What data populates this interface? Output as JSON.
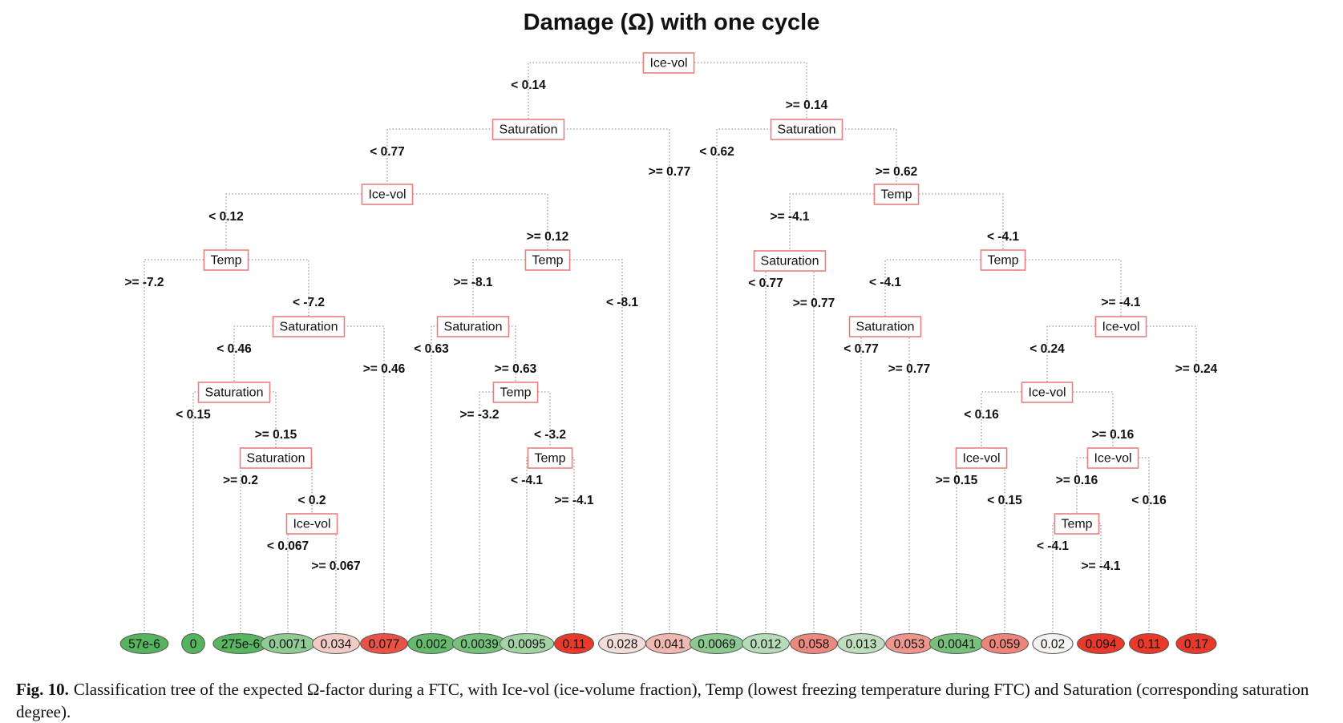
{
  "title": "Damage (Ω) with one cycle",
  "caption": {
    "label": "Fig. 10.",
    "text": "Classification tree of the expected Ω-factor during a FTC, with Ice-vol (ice-volume fraction), Temp (lowest freezing temperature during FTC) and Saturation (corresponding saturation degree)."
  },
  "colors": {
    "node_border": "#e88080",
    "low_green": "#56b45f",
    "mid_white": "#f4f4f0",
    "high_red": "#e8392b"
  },
  "nodes": [
    {
      "id": "n1",
      "label": "Ice-vol"
    },
    {
      "id": "n2",
      "label": "Saturation"
    },
    {
      "id": "n3",
      "label": "Saturation"
    },
    {
      "id": "n4",
      "label": "Ice-vol"
    },
    {
      "id": "n5",
      "label": "Temp"
    },
    {
      "id": "n6",
      "label": "Temp"
    },
    {
      "id": "n7",
      "label": "Saturation"
    },
    {
      "id": "n8",
      "label": "Saturation"
    },
    {
      "id": "n9",
      "label": "Saturation"
    },
    {
      "id": "n10",
      "label": "Ice-vol"
    },
    {
      "id": "n11",
      "label": "Temp"
    },
    {
      "id": "n12",
      "label": "Saturation"
    },
    {
      "id": "n13",
      "label": "Temp"
    },
    {
      "id": "n14",
      "label": "Temp"
    },
    {
      "id": "n15",
      "label": "Saturation"
    },
    {
      "id": "n16",
      "label": "Temp"
    },
    {
      "id": "n17",
      "label": "Saturation"
    },
    {
      "id": "n18",
      "label": "Ice-vol"
    },
    {
      "id": "n19",
      "label": "Ice-vol"
    },
    {
      "id": "n20",
      "label": "Ice-vol"
    },
    {
      "id": "n21",
      "label": "Ice-vol"
    },
    {
      "id": "n22",
      "label": "Temp"
    }
  ],
  "leaves": [
    {
      "label": "57e-6",
      "value": 5.7e-05
    },
    {
      "label": "0",
      "value": 0
    },
    {
      "label": "275e-6",
      "value": 0.000275
    },
    {
      "label": "0.0071",
      "value": 0.0071
    },
    {
      "label": "0.034",
      "value": 0.034
    },
    {
      "label": "0.077",
      "value": 0.077
    },
    {
      "label": "0.002",
      "value": 0.002
    },
    {
      "label": "0.0039",
      "value": 0.0039
    },
    {
      "label": "0.0095",
      "value": 0.0095
    },
    {
      "label": "0.11",
      "value": 0.11
    },
    {
      "label": "0.028",
      "value": 0.028
    },
    {
      "label": "0.041",
      "value": 0.041
    },
    {
      "label": "0.0069",
      "value": 0.0069
    },
    {
      "label": "0.012",
      "value": 0.012
    },
    {
      "label": "0.058",
      "value": 0.058
    },
    {
      "label": "0.013",
      "value": 0.013
    },
    {
      "label": "0.053",
      "value": 0.053
    },
    {
      "label": "0.0041",
      "value": 0.0041
    },
    {
      "label": "0.059",
      "value": 0.059
    },
    {
      "label": "0.02",
      "value": 0.02
    },
    {
      "label": "0.094",
      "value": 0.094
    },
    {
      "label": "0.11",
      "value": 0.11
    },
    {
      "label": "0.17",
      "value": 0.17
    }
  ],
  "edges": [
    {
      "from": "n1",
      "to": "n2",
      "label": "< 0.14"
    },
    {
      "from": "n1",
      "to": "n3",
      "label": ">= 0.14"
    },
    {
      "from": "n2",
      "to": "n4",
      "label": "< 0.77"
    },
    {
      "from": "n2",
      "to": "leaf11",
      "label": ">= 0.77"
    },
    {
      "from": "n4",
      "to": "n5",
      "label": "< 0.12"
    },
    {
      "from": "n4",
      "to": "n6",
      "label": ">= 0.12"
    },
    {
      "from": "n5",
      "to": "leaf0",
      "label": ">= -7.2"
    },
    {
      "from": "n5",
      "to": "n7",
      "label": "< -7.2"
    },
    {
      "from": "n7",
      "to": "n8",
      "label": "< 0.46"
    },
    {
      "from": "n7",
      "to": "leaf5",
      "label": ">= 0.46"
    },
    {
      "from": "n8",
      "to": "leaf1",
      "label": "< 0.15"
    },
    {
      "from": "n8",
      "to": "n9",
      "label": ">= 0.15"
    },
    {
      "from": "n9",
      "to": "leaf2",
      "label": ">= 0.2"
    },
    {
      "from": "n9",
      "to": "n10",
      "label": "< 0.2"
    },
    {
      "from": "n10",
      "to": "leaf3",
      "label": "< 0.067"
    },
    {
      "from": "n10",
      "to": "leaf4",
      "label": ">= 0.067"
    },
    {
      "from": "n6",
      "to": "n12",
      "label": ">= -8.1"
    },
    {
      "from": "n6",
      "to": "leaf10",
      "label": "< -8.1"
    },
    {
      "from": "n12",
      "to": "leaf6",
      "label": "< 0.63"
    },
    {
      "from": "n12",
      "to": "n13",
      "label": ">= 0.63"
    },
    {
      "from": "n13",
      "to": "leaf7",
      "label": ">= -3.2"
    },
    {
      "from": "n13",
      "to": "n14",
      "label": "< -3.2"
    },
    {
      "from": "n14",
      "to": "leaf8",
      "label": "< -4.1"
    },
    {
      "from": "n14",
      "to": "leaf9",
      "label": ">= -4.1"
    },
    {
      "from": "n3",
      "to": "leaf12",
      "label": "< 0.62"
    },
    {
      "from": "n3",
      "to": "n11",
      "label": ">= 0.62"
    },
    {
      "from": "n11",
      "to": "n15",
      "label": ">= -4.1"
    },
    {
      "from": "n11",
      "to": "n16",
      "label": "< -4.1"
    },
    {
      "from": "n15",
      "to": "leaf13",
      "label": "< 0.77"
    },
    {
      "from": "n15",
      "to": "leaf14",
      "label": ">= 0.77"
    },
    {
      "from": "n16",
      "to": "n17",
      "label": "< -4.1"
    },
    {
      "from": "n16",
      "to": "n18",
      "label": ">= -4.1"
    },
    {
      "from": "n17",
      "to": "leaf15",
      "label": "< 0.77"
    },
    {
      "from": "n17",
      "to": "leaf16",
      "label": ">= 0.77"
    },
    {
      "from": "n18",
      "to": "n19",
      "label": "< 0.24"
    },
    {
      "from": "n18",
      "to": "leaf22",
      "label": ">= 0.24"
    },
    {
      "from": "n19",
      "to": "n20",
      "label": "< 0.16"
    },
    {
      "from": "n19",
      "to": "n21",
      "label": ">= 0.16"
    },
    {
      "from": "n20",
      "to": "leaf17",
      "label": ">= 0.15"
    },
    {
      "from": "n20",
      "to": "leaf18",
      "label": "< 0.15"
    },
    {
      "from": "n21",
      "to": "n22",
      "label": ">= 0.16"
    },
    {
      "from": "n21",
      "to": "leaf21",
      "label": "< 0.16"
    },
    {
      "from": "n22",
      "to": "leaf19",
      "label": "< -4.1"
    },
    {
      "from": "n22",
      "to": "leaf20",
      "label": ">= -4.1"
    }
  ]
}
